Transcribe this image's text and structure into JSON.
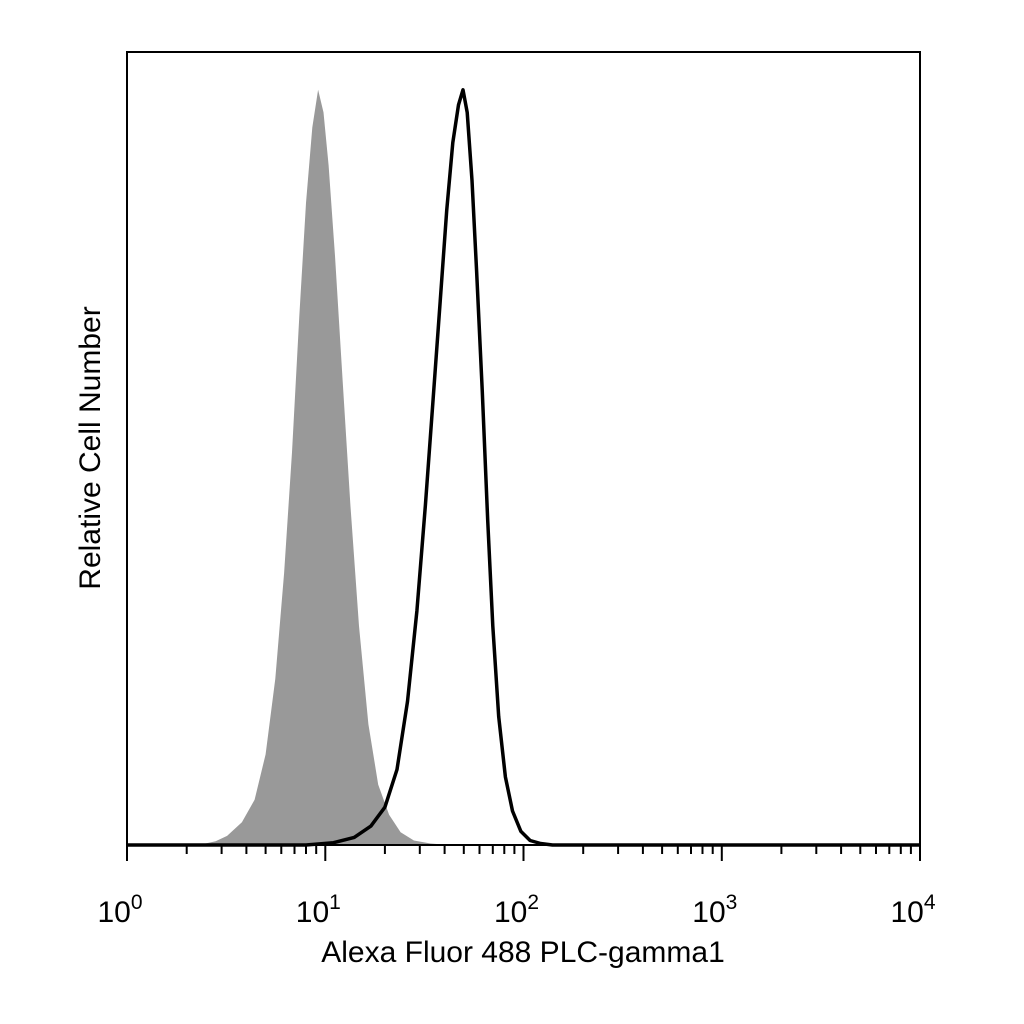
{
  "chart_data": {
    "type": "area",
    "xlabel": "Alexa Fluor 488 PLC-gamma1",
    "ylabel": "Relative Cell Number",
    "x_scale": "log",
    "xlim": [
      1,
      10000
    ],
    "ylim": [
      0,
      1.05
    ],
    "grid": false,
    "x_ticks": [
      {
        "base": "10",
        "exp": "0",
        "value": 1
      },
      {
        "base": "10",
        "exp": "1",
        "value": 10
      },
      {
        "base": "10",
        "exp": "2",
        "value": 100
      },
      {
        "base": "10",
        "exp": "3",
        "value": 1000
      },
      {
        "base": "10",
        "exp": "4",
        "value": 10000
      }
    ],
    "series": [
      {
        "style": "filled",
        "color": "#999999",
        "points": [
          [
            2.3,
            0.0
          ],
          [
            2.8,
            0.005
          ],
          [
            3.2,
            0.012
          ],
          [
            3.8,
            0.03
          ],
          [
            4.4,
            0.06
          ],
          [
            5.0,
            0.12
          ],
          [
            5.6,
            0.22
          ],
          [
            6.2,
            0.36
          ],
          [
            6.8,
            0.52
          ],
          [
            7.4,
            0.7
          ],
          [
            8.0,
            0.85
          ],
          [
            8.6,
            0.95
          ],
          [
            9.2,
            1.0
          ],
          [
            9.8,
            0.97
          ],
          [
            10.4,
            0.9
          ],
          [
            11.2,
            0.78
          ],
          [
            12.2,
            0.62
          ],
          [
            13.4,
            0.45
          ],
          [
            14.8,
            0.29
          ],
          [
            16.5,
            0.16
          ],
          [
            18.5,
            0.08
          ],
          [
            21.0,
            0.04
          ],
          [
            24.0,
            0.017
          ],
          [
            28.0,
            0.006
          ],
          [
            34.0,
            0.002
          ],
          [
            42.0,
            0.0
          ]
        ]
      },
      {
        "style": "outline",
        "color": "#000000",
        "points": [
          [
            1.0,
            0.0
          ],
          [
            8.0,
            0.0
          ],
          [
            11.0,
            0.003
          ],
          [
            14.0,
            0.01
          ],
          [
            17.0,
            0.025
          ],
          [
            20.0,
            0.05
          ],
          [
            23.0,
            0.1
          ],
          [
            26.0,
            0.19
          ],
          [
            29.0,
            0.31
          ],
          [
            32.0,
            0.45
          ],
          [
            35.0,
            0.59
          ],
          [
            38.0,
            0.72
          ],
          [
            41.0,
            0.84
          ],
          [
            44.0,
            0.93
          ],
          [
            47.0,
            0.98
          ],
          [
            49.5,
            1.0
          ],
          [
            52.0,
            0.97
          ],
          [
            55.0,
            0.88
          ],
          [
            58.0,
            0.76
          ],
          [
            62.0,
            0.6
          ],
          [
            66.0,
            0.43
          ],
          [
            70.0,
            0.29
          ],
          [
            75.0,
            0.17
          ],
          [
            81.0,
            0.09
          ],
          [
            88.0,
            0.045
          ],
          [
            97.0,
            0.018
          ],
          [
            108.0,
            0.006
          ],
          [
            122.0,
            0.002
          ],
          [
            140.0,
            0.0
          ],
          [
            10000.0,
            0.0
          ]
        ]
      }
    ]
  }
}
